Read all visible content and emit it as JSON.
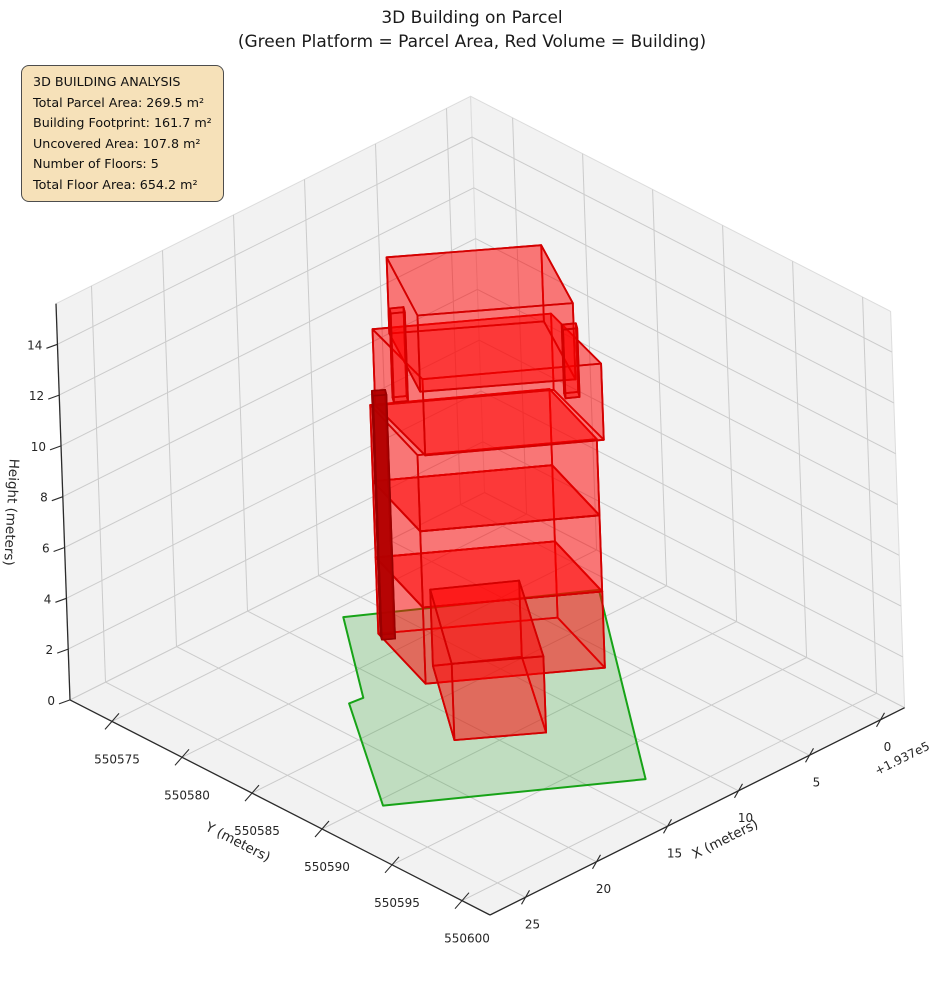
{
  "title": {
    "line1": "3D Building on Parcel",
    "line2": "(Green Platform = Parcel Area, Red Volume = Building)"
  },
  "info_box": {
    "lines": [
      "3D BUILDING ANALYSIS",
      "Total Parcel Area: 269.5 m²",
      "Building Footprint: 161.7 m²",
      "Uncovered Area: 107.8 m²",
      "Number of Floors: 5",
      "Total Floor Area: 654.2 m²"
    ]
  },
  "chart_data": {
    "type": "3d-building",
    "axes": {
      "x": {
        "label": "X (meters)",
        "ticks": [
          0,
          5,
          10,
          15,
          20,
          25
        ],
        "offset_label": "+1.937e5",
        "range": [
          -1.7,
          27.5
        ]
      },
      "y": {
        "label": "Y (meters)",
        "ticks": [
          550575,
          550580,
          550585,
          550590,
          550595,
          550600
        ],
        "range": [
          550572,
          550602
        ]
      },
      "z": {
        "label": "Height (meters)",
        "ticks": [
          0,
          2,
          4,
          6,
          8,
          10,
          12,
          14
        ],
        "range": [
          0,
          15.6
        ]
      }
    },
    "style": {
      "pane_fill": "#f2f2f2",
      "pane_edge": "#dcdcdc",
      "grid_color": "#cbcbcb",
      "axis_color": "#2b2b2b",
      "text_color": "#262626",
      "building_fill": "#ff0000",
      "building_edge": "#d40000",
      "building_opacity": 0.3,
      "parcel_fill": "#2ca02c",
      "parcel_edge": "#17a317",
      "parcel_opacity": 0.25,
      "column_fill": "#b30000",
      "column_edge": "#990000"
    },
    "parcel": {
      "area_m2": 269.5,
      "polygon": [
        [
          12.0,
          550575.8
        ],
        [
          16.9,
          550582.2
        ],
        [
          17.8,
          550582.1
        ],
        [
          23.7,
          550590.5
        ],
        [
          12.5,
          550597.9
        ],
        [
          1.0,
          550582.9
        ]
      ]
    },
    "building": {
      "footprint_m2": 161.7,
      "num_floors": 5,
      "floor_height_m": 3,
      "total_floor_area_m2": 654.2,
      "parts": [
        {
          "name": "floor-1",
          "z": [
            0,
            3
          ],
          "footprint": [
            [
              11.9,
              550578.2
            ],
            [
              4.4,
              550583.4
            ],
            [
              6.2,
              550588.6
            ],
            [
              13.7,
              550583.4
            ]
          ]
        },
        {
          "name": "floor-2",
          "z": [
            3,
            6
          ],
          "footprint": [
            [
              11.9,
              550578.2
            ],
            [
              4.4,
              550583.4
            ],
            [
              6.2,
              550588.6
            ],
            [
              13.7,
              550583.4
            ]
          ]
        },
        {
          "name": "floor-3",
          "z": [
            6,
            9
          ],
          "footprint": [
            [
              11.9,
              550578.2
            ],
            [
              4.4,
              550583.4
            ],
            [
              6.2,
              550588.6
            ],
            [
              13.7,
              550583.4
            ]
          ]
        },
        {
          "name": "floor-4",
          "z": [
            9,
            12
          ],
          "footprint": [
            [
              11.75,
              550578.4
            ],
            [
              4.3,
              550583.6
            ],
            [
              6.0,
              550588.9
            ],
            [
              13.45,
              550583.7
            ]
          ]
        },
        {
          "name": "floor-5",
          "z": [
            12,
            15
          ],
          "footprint": [
            [
              11.45,
              550579.3
            ],
            [
              5.1,
              550583.9
            ],
            [
              8.0,
              550589.1
            ],
            [
              14.4,
              550584.5
            ]
          ]
        },
        {
          "name": "roof-fin-left",
          "z": [
            9.3,
            12.8
          ],
          "footprint": [
            [
              11.1,
              550579.0
            ],
            [
              10.5,
              550579.4
            ],
            [
              10.8,
              550579.8
            ],
            [
              11.4,
              550579.4
            ]
          ]
        },
        {
          "name": "roof-fin-right",
          "z": [
            10.8,
            13.5
          ],
          "footprint": [
            [
              7.3,
              550587.5
            ],
            [
              6.7,
              550587.9
            ],
            [
              7.0,
              550588.3
            ],
            [
              7.6,
              550587.9
            ]
          ]
        },
        {
          "name": "corner-column",
          "z": [
            0,
            9.6
          ],
          "solid": true,
          "footprint": [
            [
              11.9,
              550578.35
            ],
            [
              11.35,
              550578.75
            ],
            [
              11.65,
              550579.15
            ],
            [
              12.2,
              550578.75
            ]
          ]
        },
        {
          "name": "front-annex",
          "z": [
            0,
            3
          ],
          "footprint": [
            [
              12.2,
              550582.4
            ],
            [
              8.4,
              550584.9
            ],
            [
              12.8,
              550591.1
            ],
            [
              16.6,
              550588.4
            ]
          ]
        }
      ]
    }
  }
}
